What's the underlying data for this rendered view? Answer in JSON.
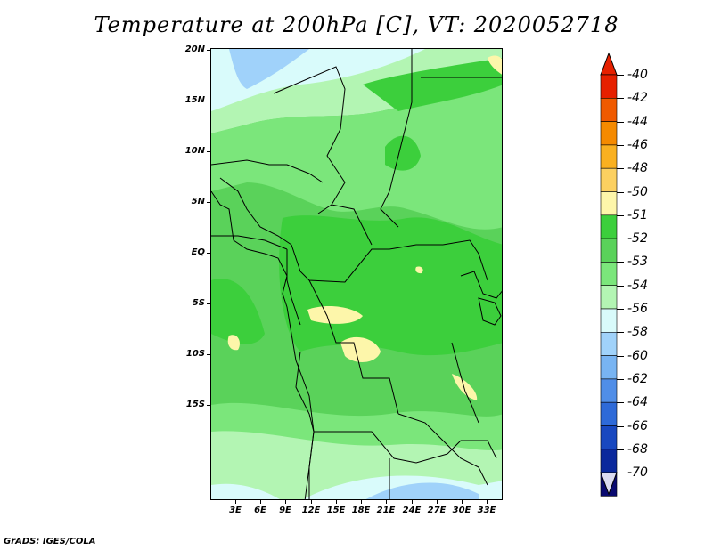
{
  "title": "Temperature at 200hPa [C], VT: 2020052718",
  "credit": "GrADS: IGES/COLA",
  "map": {
    "lat_labels": [
      "20N",
      "15N",
      "10N",
      "5N",
      "EQ",
      "5S",
      "10S",
      "15S"
    ],
    "lon_labels": [
      "3E",
      "6E",
      "9E",
      "12E",
      "15E",
      "18E",
      "21E",
      "24E",
      "27E",
      "30E",
      "33E"
    ],
    "field_colors": {
      "level_-51": "#3ccf3c",
      "level_-52": "#5ad25a",
      "level_-53": "#7be67b",
      "level_-54": "#b3f5b3",
      "level_-56": "#d9fbfb",
      "level_-58": "#a0d2fa",
      "level_-50": "#fdf6aa"
    }
  },
  "colorbar": {
    "labels": [
      "-40",
      "-42",
      "-44",
      "-46",
      "-48",
      "-50",
      "-51",
      "-52",
      "-53",
      "-54",
      "-56",
      "-58",
      "-60",
      "-62",
      "-64",
      "-66",
      "-68",
      "-70"
    ],
    "colors": [
      "#e62000",
      "#f05a00",
      "#f58a00",
      "#f9b020",
      "#fcd060",
      "#fdf6aa",
      "#3ccf3c",
      "#5ad25a",
      "#7be67b",
      "#b3f5b3",
      "#d9fbfb",
      "#a0d2fa",
      "#78b4f2",
      "#508ee8",
      "#2e6ad8",
      "#1848c0",
      "#0a289c",
      "#0a0a70"
    ],
    "top_arrow_color": "#e62000",
    "bottom_arrow_color": "#dadaf0"
  }
}
